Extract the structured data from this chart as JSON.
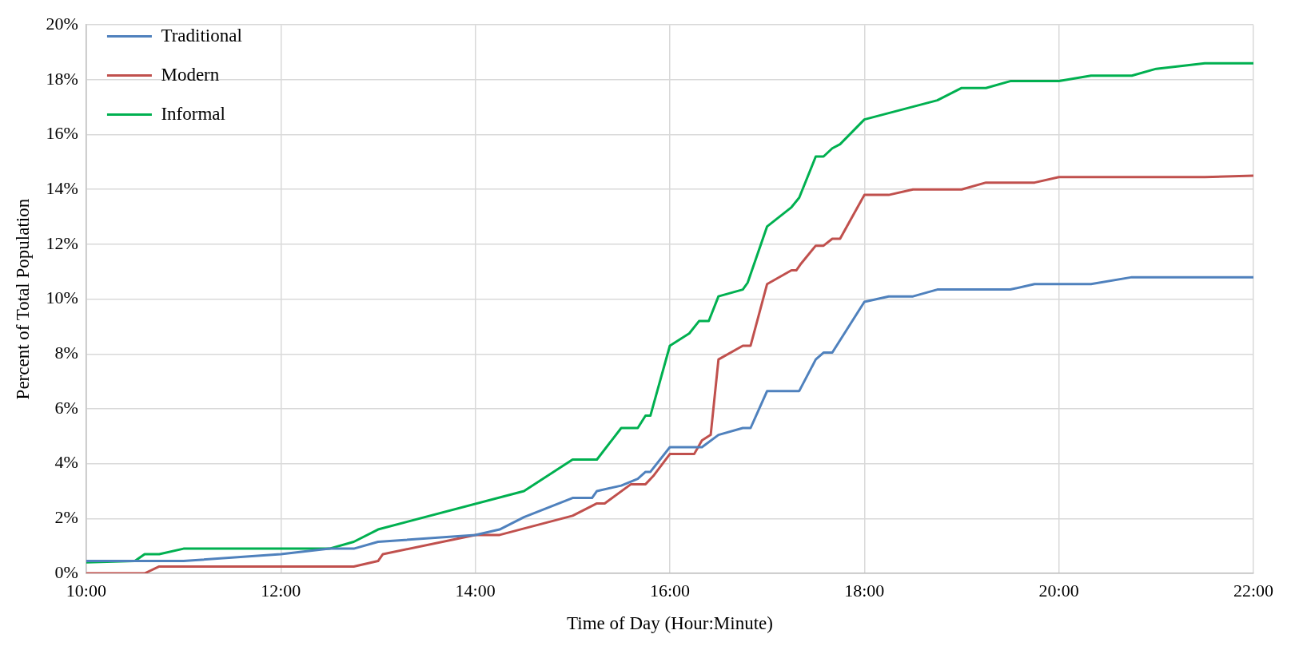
{
  "chart_data": {
    "type": "line",
    "xlabel": "Time of Day (Hour:Minute)",
    "ylabel": "Percent of Total Population",
    "xlim": [
      10,
      22
    ],
    "xticks": [
      {
        "value": 10,
        "label": "10:00"
      },
      {
        "value": 12,
        "label": "12:00"
      },
      {
        "value": 14,
        "label": "14:00"
      },
      {
        "value": 16,
        "label": "16:00"
      },
      {
        "value": 18,
        "label": "18:00"
      },
      {
        "value": 20,
        "label": "20:00"
      },
      {
        "value": 22,
        "label": "22:00"
      }
    ],
    "ylim": [
      0,
      20
    ],
    "yticks": [
      {
        "value": 0,
        "label": "0%"
      },
      {
        "value": 2,
        "label": "2%"
      },
      {
        "value": 4,
        "label": "4%"
      },
      {
        "value": 6,
        "label": "6%"
      },
      {
        "value": 8,
        "label": "8%"
      },
      {
        "value": 10,
        "label": "10%"
      },
      {
        "value": 12,
        "label": "12%"
      },
      {
        "value": 14,
        "label": "14%"
      },
      {
        "value": 16,
        "label": "16%"
      },
      {
        "value": 18,
        "label": "18%"
      },
      {
        "value": 20,
        "label": "20%"
      }
    ],
    "grid": true,
    "legend": "top left",
    "marker": "none",
    "line_style": "solid",
    "series": [
      {
        "name": "Traditional",
        "color": "#4f81bd",
        "x": [
          10,
          11,
          12,
          12.5,
          12.75,
          13,
          14,
          14.25,
          14.5,
          15,
          15.2,
          15.25,
          15.5,
          15.67,
          15.75,
          15.8,
          16,
          16.33,
          16.5,
          16.75,
          16.83,
          17,
          17.33,
          17.5,
          17.58,
          17.67,
          18,
          18.25,
          18.5,
          18.75,
          19.5,
          19.75,
          20.33,
          20.75,
          22
        ],
        "values": [
          0.45,
          0.45,
          0.7,
          0.9,
          0.9,
          1.15,
          1.4,
          1.6,
          2.05,
          2.75,
          2.75,
          3.0,
          3.2,
          3.45,
          3.7,
          3.7,
          4.6,
          4.6,
          5.05,
          5.3,
          5.3,
          6.65,
          6.65,
          7.8,
          8.05,
          8.05,
          9.9,
          10.1,
          10.1,
          10.35,
          10.35,
          10.55,
          10.55,
          10.8,
          10.8
        ]
      },
      {
        "name": "Modern",
        "color": "#c0504d",
        "x": [
          10,
          10.6,
          10.75,
          12.75,
          13,
          13.05,
          14,
          14.25,
          15,
          15.25,
          15.33,
          15.6,
          15.75,
          15.83,
          16,
          16.25,
          16.33,
          16.42,
          16.5,
          16.75,
          16.83,
          17,
          17.25,
          17.3,
          17.35,
          17.5,
          17.58,
          17.67,
          17.75,
          18,
          18.25,
          18.5,
          19,
          19.25,
          19.75,
          20,
          21.5,
          22
        ],
        "values": [
          0,
          0,
          0.25,
          0.25,
          0.45,
          0.7,
          1.4,
          1.4,
          2.1,
          2.55,
          2.55,
          3.25,
          3.25,
          3.55,
          4.35,
          4.35,
          4.85,
          5.05,
          7.8,
          8.3,
          8.3,
          10.55,
          11.05,
          11.05,
          11.3,
          11.95,
          11.95,
          12.2,
          12.2,
          13.8,
          13.8,
          14.0,
          14.0,
          14.25,
          14.25,
          14.45,
          14.45,
          14.5
        ]
      },
      {
        "name": "Informal",
        "color": "#00b050",
        "x": [
          10,
          10.5,
          10.6,
          10.75,
          11,
          12.5,
          12.75,
          13,
          14.5,
          15,
          15.25,
          15.5,
          15.67,
          15.75,
          15.8,
          16,
          16.2,
          16.3,
          16.4,
          16.5,
          16.75,
          16.8,
          17,
          17.25,
          17.33,
          17.5,
          17.58,
          17.67,
          17.75,
          18,
          18.75,
          19,
          19.25,
          19.5,
          20,
          20.33,
          20.75,
          21,
          21.5,
          22
        ],
        "values": [
          0.4,
          0.45,
          0.7,
          0.7,
          0.9,
          0.9,
          1.15,
          1.6,
          3.0,
          4.15,
          4.15,
          5.3,
          5.3,
          5.75,
          5.75,
          8.3,
          8.75,
          9.2,
          9.2,
          10.1,
          10.35,
          10.6,
          12.65,
          13.35,
          13.7,
          15.2,
          15.2,
          15.5,
          15.65,
          16.55,
          17.25,
          17.7,
          17.7,
          17.95,
          17.95,
          18.15,
          18.15,
          18.4,
          18.6,
          18.6
        ]
      }
    ]
  }
}
